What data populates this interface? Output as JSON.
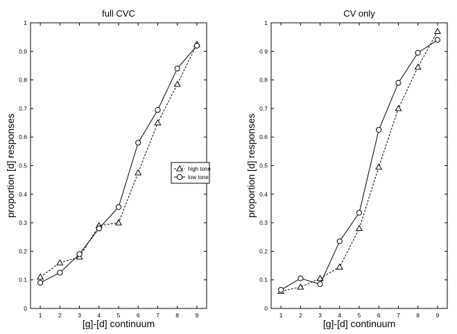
{
  "chart_data": [
    {
      "type": "line",
      "title": "full CVC",
      "xlabel": "[g]-[d] continuum",
      "ylabel": "proportion [d] responses",
      "xlim": [
        0.5,
        9.5
      ],
      "ylim": [
        0,
        1
      ],
      "x": [
        1,
        2,
        3,
        4,
        5,
        6,
        7,
        8,
        9
      ],
      "xticks": [
        "1",
        "2",
        "3",
        "4",
        "5",
        "6",
        "7",
        "8",
        "9"
      ],
      "yticks": [
        "0",
        "0.1",
        "0.2",
        "0.3",
        "0.4",
        "0.5",
        "0.6",
        "0.7",
        "0.8",
        "0.9",
        "1"
      ],
      "grid": false,
      "legend": {
        "placement": "center-right",
        "entries": [
          "high tone",
          "low tone"
        ]
      },
      "series": [
        {
          "name": "high tone",
          "line": "dashed",
          "marker": "triangle",
          "values": [
            0.11,
            0.16,
            0.18,
            0.29,
            0.3,
            0.475,
            0.65,
            0.785,
            0.925
          ]
        },
        {
          "name": "low tone",
          "line": "solid",
          "marker": "circle",
          "values": [
            0.09,
            0.125,
            0.19,
            0.28,
            0.355,
            0.58,
            0.695,
            0.84,
            0.92
          ]
        }
      ]
    },
    {
      "type": "line",
      "title": "CV only",
      "xlabel": "[g]-[d] continuum",
      "ylabel": "proportion [d] responses",
      "xlim": [
        0.5,
        9.5
      ],
      "ylim": [
        0,
        1
      ],
      "x": [
        1,
        2,
        3,
        4,
        5,
        6,
        7,
        8,
        9
      ],
      "xticks": [
        "1",
        "2",
        "3",
        "4",
        "5",
        "6",
        "7",
        "8",
        "9"
      ],
      "yticks": [
        "0",
        "0.1",
        "0.2",
        "0.3",
        "0.4",
        "0.5",
        "0.6",
        "0.7",
        "0.8",
        "0.9",
        "1"
      ],
      "grid": false,
      "series": [
        {
          "name": "high tone",
          "line": "dashed",
          "marker": "triangle",
          "values": [
            0.06,
            0.075,
            0.105,
            0.145,
            0.28,
            0.495,
            0.7,
            0.845,
            0.97
          ]
        },
        {
          "name": "low tone",
          "line": "solid",
          "marker": "circle",
          "values": [
            0.065,
            0.105,
            0.085,
            0.235,
            0.335,
            0.625,
            0.79,
            0.895,
            0.94
          ]
        }
      ]
    }
  ]
}
